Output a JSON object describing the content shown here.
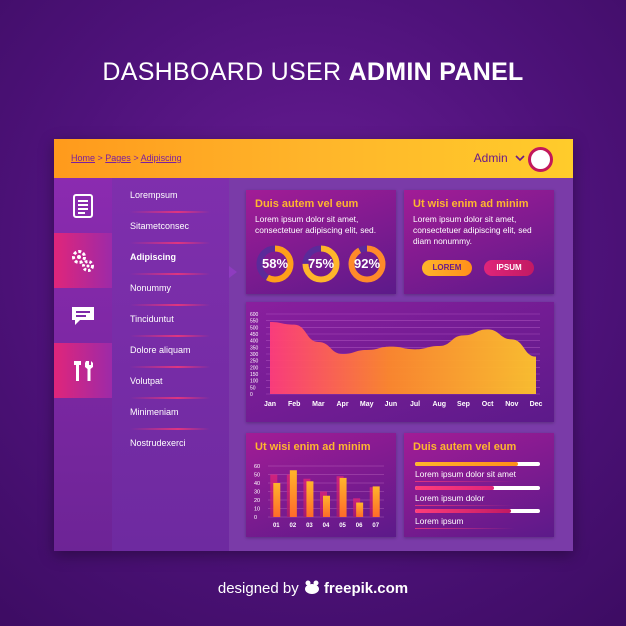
{
  "page": {
    "title_light": "DASHBOARD USER ",
    "title_bold": "ADMIN PANEL",
    "footer_prefix": "designed by ",
    "footer_brand": "freepik.com"
  },
  "topbar": {
    "breadcrumb": [
      "Home",
      "Pages",
      "Adipiscing"
    ],
    "separator": " > ",
    "user_name": "Admin"
  },
  "iconbar": {
    "items": [
      {
        "icon": "document-icon"
      },
      {
        "icon": "gears-icon"
      },
      {
        "icon": "chat-icon"
      },
      {
        "icon": "tools-icon"
      }
    ]
  },
  "menu": {
    "items": [
      "Lorempsum",
      "Sitametconsec",
      "Adipiscing",
      "Nonummy",
      "Tinciduntut",
      "Dolore aliquam",
      "Volutpat",
      "Minimeniam",
      "Nostrudexerci"
    ],
    "selected_index": 2
  },
  "card_stats": {
    "title": "Duis autem vel eum",
    "text_line1": "Lorem ipsum dolor sit amet,",
    "text_line2": "consectetuer adipiscing elit, sed.",
    "donuts": [
      {
        "label": "58%",
        "value": 58
      },
      {
        "label": "75%",
        "value": 75
      },
      {
        "label": "92%",
        "value": 92
      }
    ]
  },
  "card_actions": {
    "title": "Ut wisi enim ad minim",
    "text_line1": "Lorem ipsum dolor sit amet,",
    "text_line2": "consectetuer adipiscing elit, sed",
    "text_line3": "diam nonummy.",
    "button1": "LOREM",
    "button2": "IPSUM"
  },
  "card_bars": {
    "title": "Ut wisi enim ad minim"
  },
  "card_progress": {
    "title": "Duis autem vel eum",
    "items": [
      {
        "label": "Lorem ipsum dolor sit amet",
        "value": 0.82
      },
      {
        "label": "Lorem ipsum dolor",
        "value": 0.63
      },
      {
        "label": "Lorem ipsum",
        "value": 0.77
      }
    ]
  },
  "colors": {
    "accent_orange": "#ffb72e",
    "accent_pink": "#e0257a",
    "panel_purple": "#7a3ba8"
  },
  "chart_data": [
    {
      "type": "area",
      "title": "",
      "categories": [
        "Jan",
        "Feb",
        "Mar",
        "Apr",
        "May",
        "Jun",
        "Jul",
        "Aug",
        "Sep",
        "Oct",
        "Nov",
        "Dec"
      ],
      "values": [
        540,
        520,
        390,
        300,
        330,
        355,
        335,
        360,
        440,
        485,
        410,
        280
      ],
      "ylim": [
        0,
        600
      ],
      "yticks": [
        0,
        50,
        100,
        150,
        200,
        250,
        300,
        350,
        400,
        450,
        500,
        550,
        600
      ],
      "grid": true
    },
    {
      "type": "bar",
      "title": "Ut wisi enim ad minim",
      "categories": [
        "01",
        "02",
        "03",
        "04",
        "05",
        "06",
        "07"
      ],
      "series": [
        {
          "name": "back",
          "values": [
            50,
            50,
            45,
            30,
            48,
            22,
            35
          ]
        },
        {
          "name": "front",
          "values": [
            40,
            55,
            42,
            25,
            46,
            17,
            36
          ]
        }
      ],
      "ylim": [
        0,
        60
      ],
      "yticks": [
        0,
        10,
        20,
        30,
        40,
        50,
        60
      ],
      "grid": true
    }
  ]
}
